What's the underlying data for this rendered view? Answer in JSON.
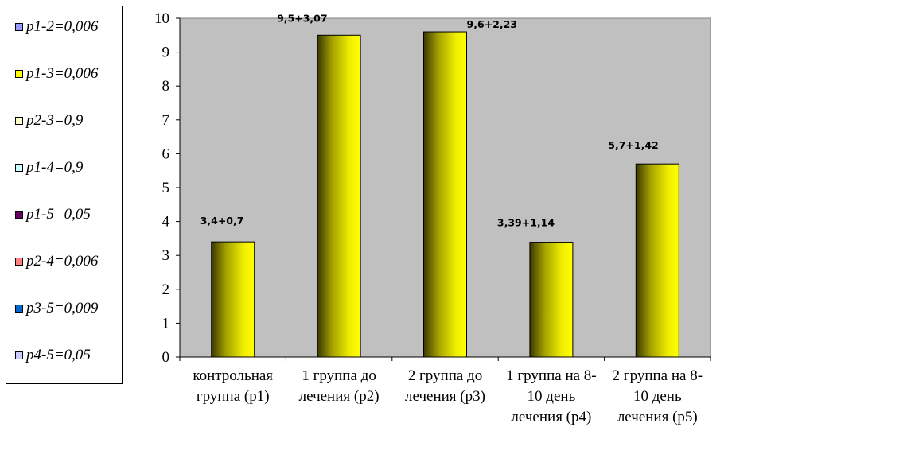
{
  "legend": {
    "items": [
      {
        "label": "p1-2=0,006",
        "color": "#9999ff"
      },
      {
        "label": "p1-3=0,006",
        "color": "#ffff00"
      },
      {
        "label": "p2-3=0,9",
        "color": "#ffffcc"
      },
      {
        "label": "p1-4=0,9",
        "color": "#ccffff"
      },
      {
        "label": "p1-5=0,05",
        "color": "#660066"
      },
      {
        "label": "p2-4=0,006",
        "color": "#ff8080"
      },
      {
        "label": "p3-5=0,009",
        "color": "#0066cc"
      },
      {
        "label": "p4-5=0,05",
        "color": "#ccccff"
      }
    ]
  },
  "chart_data": {
    "type": "bar",
    "categories": [
      "контрольная группа (р1)",
      "1 группа до лечения (р2)",
      "2 группа до лечения (р3)",
      "1 группа на 8-10 день лечения (р4)",
      "2 группа на 8-10 день лечения (р5)"
    ],
    "category_lines": [
      [
        "контрольная",
        "группа (р1)"
      ],
      [
        "1 группа до",
        "лечения (р2)"
      ],
      [
        "2 группа до",
        "лечения (р3)"
      ],
      [
        "1 группа на 8-",
        "10 день",
        "лечения (р4)"
      ],
      [
        "2 группа на 8-",
        "10 день",
        "лечения (р5)"
      ]
    ],
    "values": [
      3.4,
      9.5,
      9.6,
      3.39,
      5.7
    ],
    "data_labels": [
      "3,4+0,7",
      "9,5+3,07",
      "9,6+2,23",
      "3,39+1,14",
      "5,7+1,42"
    ],
    "ylim": [
      0,
      10
    ],
    "yticks": [
      "0",
      "1",
      "2",
      "3",
      "4",
      "5",
      "6",
      "7",
      "8",
      "9",
      "10"
    ],
    "plot_background": "#c0c0c0",
    "bar_color": "#ffff00",
    "grid": false,
    "legend_position": "left",
    "title": "",
    "xlabel": "",
    "ylabel": ""
  }
}
